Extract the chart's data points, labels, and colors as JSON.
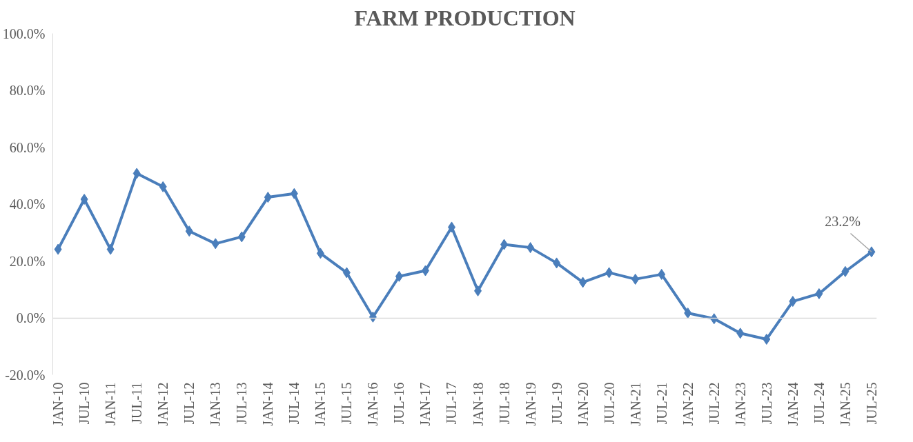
{
  "chart_data": {
    "type": "line",
    "title": "FARM PRODUCTION",
    "categories": [
      "JAN-10",
      "JUL-10",
      "JAN-11",
      "JUL-11",
      "JAN-12",
      "JUL-12",
      "JAN-13",
      "JUL-13",
      "JAN-14",
      "JUL-14",
      "JAN-15",
      "JUL-15",
      "JAN-16",
      "JUL-16",
      "JAN-17",
      "JUL-17",
      "JAN-18",
      "JUL-18",
      "JAN-19",
      "JUL-19",
      "JAN-20",
      "JUL-20",
      "JAN-21",
      "JUL-21",
      "JAN-22",
      "JUL-22",
      "JAN-23",
      "JUL-23",
      "JAN-24",
      "JUL-24",
      "JAN-25",
      "JUL-25"
    ],
    "series": [
      {
        "color": "#4a7ebb",
        "values": [
          24.1,
          41.7,
          24.1,
          50.8,
          46.1,
          30.5,
          26.1,
          28.5,
          42.4,
          43.7,
          22.7,
          15.9,
          0.3,
          14.6,
          16.6,
          31.9,
          9.5,
          25.8,
          24.7,
          19.3,
          12.5,
          15.9,
          13.6,
          15.3,
          1.7,
          -0.3,
          -5.4,
          -7.5,
          5.8,
          8.5,
          16.3,
          23.2
        ]
      }
    ],
    "ylim": [
      -20,
      100
    ],
    "yticks": [
      {
        "value": -20,
        "label": "-20.0%"
      },
      {
        "value": 0,
        "label": "0.0%"
      },
      {
        "value": 20,
        "label": "20.0%"
      },
      {
        "value": 40,
        "label": "40.0%"
      },
      {
        "value": 60,
        "label": "60.0%"
      },
      {
        "value": 80,
        "label": "80.0%"
      },
      {
        "value": 100,
        "label": "100.0%"
      }
    ],
    "annotations": [
      {
        "text": "23.2%",
        "x": "JUL-25",
        "y": 23.2
      }
    ],
    "marker": "diamond",
    "line_style": "solid"
  }
}
